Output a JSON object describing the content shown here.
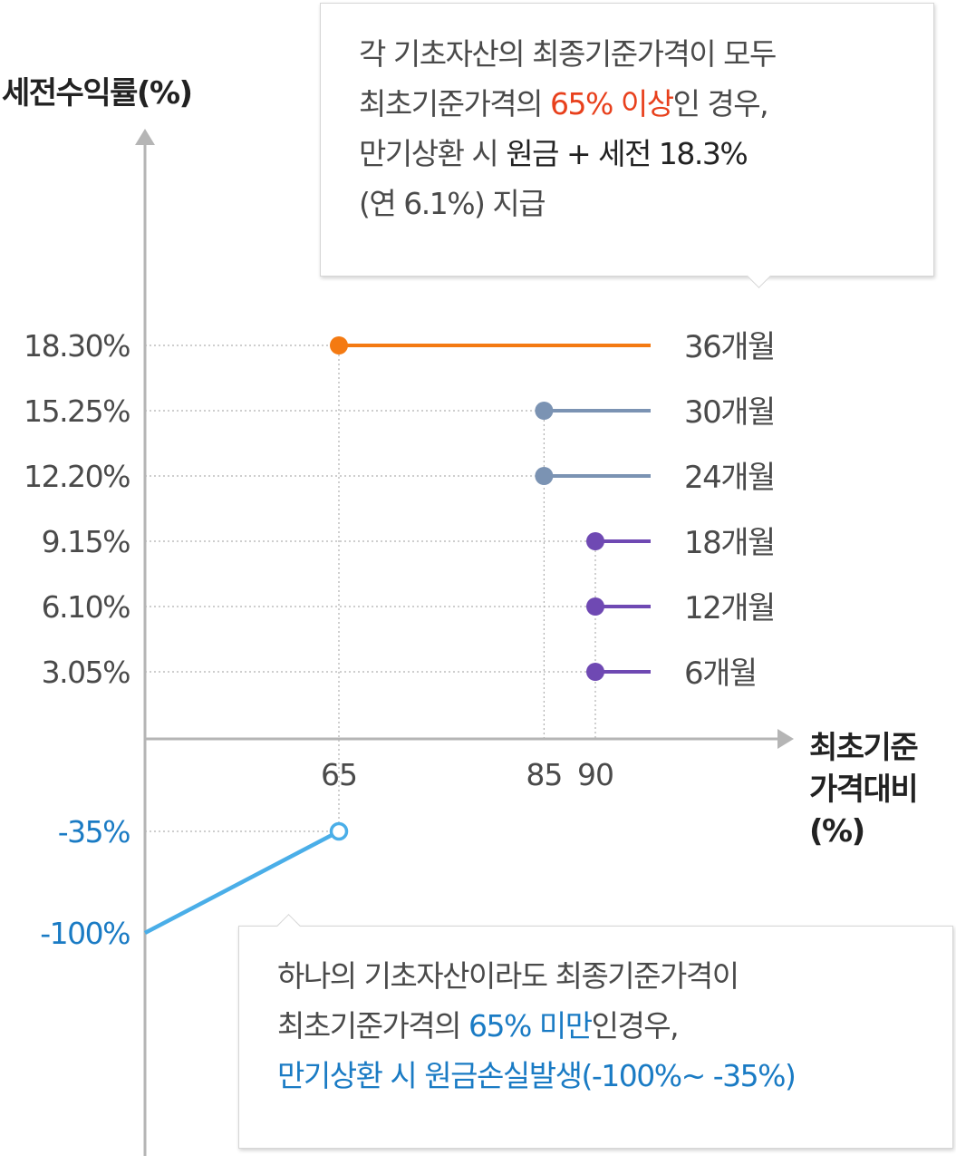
{
  "chart_data": {
    "type": "line",
    "ylabel": "세전수익률(%)",
    "xlabel": "최초기준 가격대비 (%)",
    "xlabel_lines": [
      "최초기준",
      "가격대비",
      "(%)"
    ],
    "y_ticks": [
      {
        "value": 18.3,
        "label": "18.30%"
      },
      {
        "value": 15.25,
        "label": "15.25%"
      },
      {
        "value": 12.2,
        "label": "12.20%"
      },
      {
        "value": 9.15,
        "label": "9.15%"
      },
      {
        "value": 6.1,
        "label": "6.10%"
      },
      {
        "value": 3.05,
        "label": "3.05%"
      }
    ],
    "y_ticks_negative": [
      {
        "value": -35,
        "label": "-35%"
      },
      {
        "value": -100,
        "label": "-100%"
      }
    ],
    "x_ticks": [
      {
        "value": 65,
        "label": "65"
      },
      {
        "value": 85,
        "label": "85"
      },
      {
        "value": 90,
        "label": "90"
      }
    ],
    "series": [
      {
        "name": "36개월",
        "x_start": 65,
        "y": 18.3,
        "color": "#f47a12"
      },
      {
        "name": "30개월",
        "x_start": 85,
        "y": 15.25,
        "color": "#7b93b3"
      },
      {
        "name": "24개월",
        "x_start": 85,
        "y": 12.2,
        "color": "#7b93b3"
      },
      {
        "name": "18개월",
        "x_start": 90,
        "y": 9.15,
        "color": "#6f49b3"
      },
      {
        "name": "12개월",
        "x_start": 90,
        "y": 6.1,
        "color": "#6f49b3"
      },
      {
        "name": "6개월",
        "x_start": 90,
        "y": 3.05,
        "color": "#6f49b3"
      }
    ],
    "loss_line": {
      "points": [
        {
          "x": 0,
          "y": -100
        },
        {
          "x": 65,
          "y": -35
        }
      ],
      "color": "#4aaee8",
      "endpoint": "hollow"
    },
    "grid": "dotted",
    "legend": "none"
  },
  "colors": {
    "axis": "#b5b5b5",
    "grid": "#b0b0b0",
    "tick_text": "#4a4a4a",
    "negative_tick_text": "#1a7bc4",
    "label_text": "#222222"
  },
  "callouts": {
    "top": {
      "lines": [
        [
          {
            "text": "각 기초자산의 최종기준가격이 모두",
            "style": "normal"
          }
        ],
        [
          {
            "text": "최초기준가격의 ",
            "style": "normal"
          },
          {
            "text": "65% 이상",
            "style": "red"
          },
          {
            "text": "인 경우,",
            "style": "normal"
          }
        ],
        [
          {
            "text": "만기상환 시 ",
            "style": "normal"
          },
          {
            "text": "원금 + 세전 18.3%",
            "style": "dark"
          }
        ],
        [
          {
            "text": "(연 6.1%) 지급",
            "style": "normal"
          }
        ]
      ]
    },
    "bottom": {
      "lines": [
        [
          {
            "text": "하나의 기초자산이라도 최종기준가격이",
            "style": "normal"
          }
        ],
        [
          {
            "text": "최초기준가격의 ",
            "style": "normal"
          },
          {
            "text": "65% 미만",
            "style": "blue"
          },
          {
            "text": "인경우,",
            "style": "normal"
          }
        ],
        [
          {
            "text": "만기상환 시 원금손실발생(-100%~ -35%)",
            "style": "blue"
          }
        ]
      ]
    }
  }
}
